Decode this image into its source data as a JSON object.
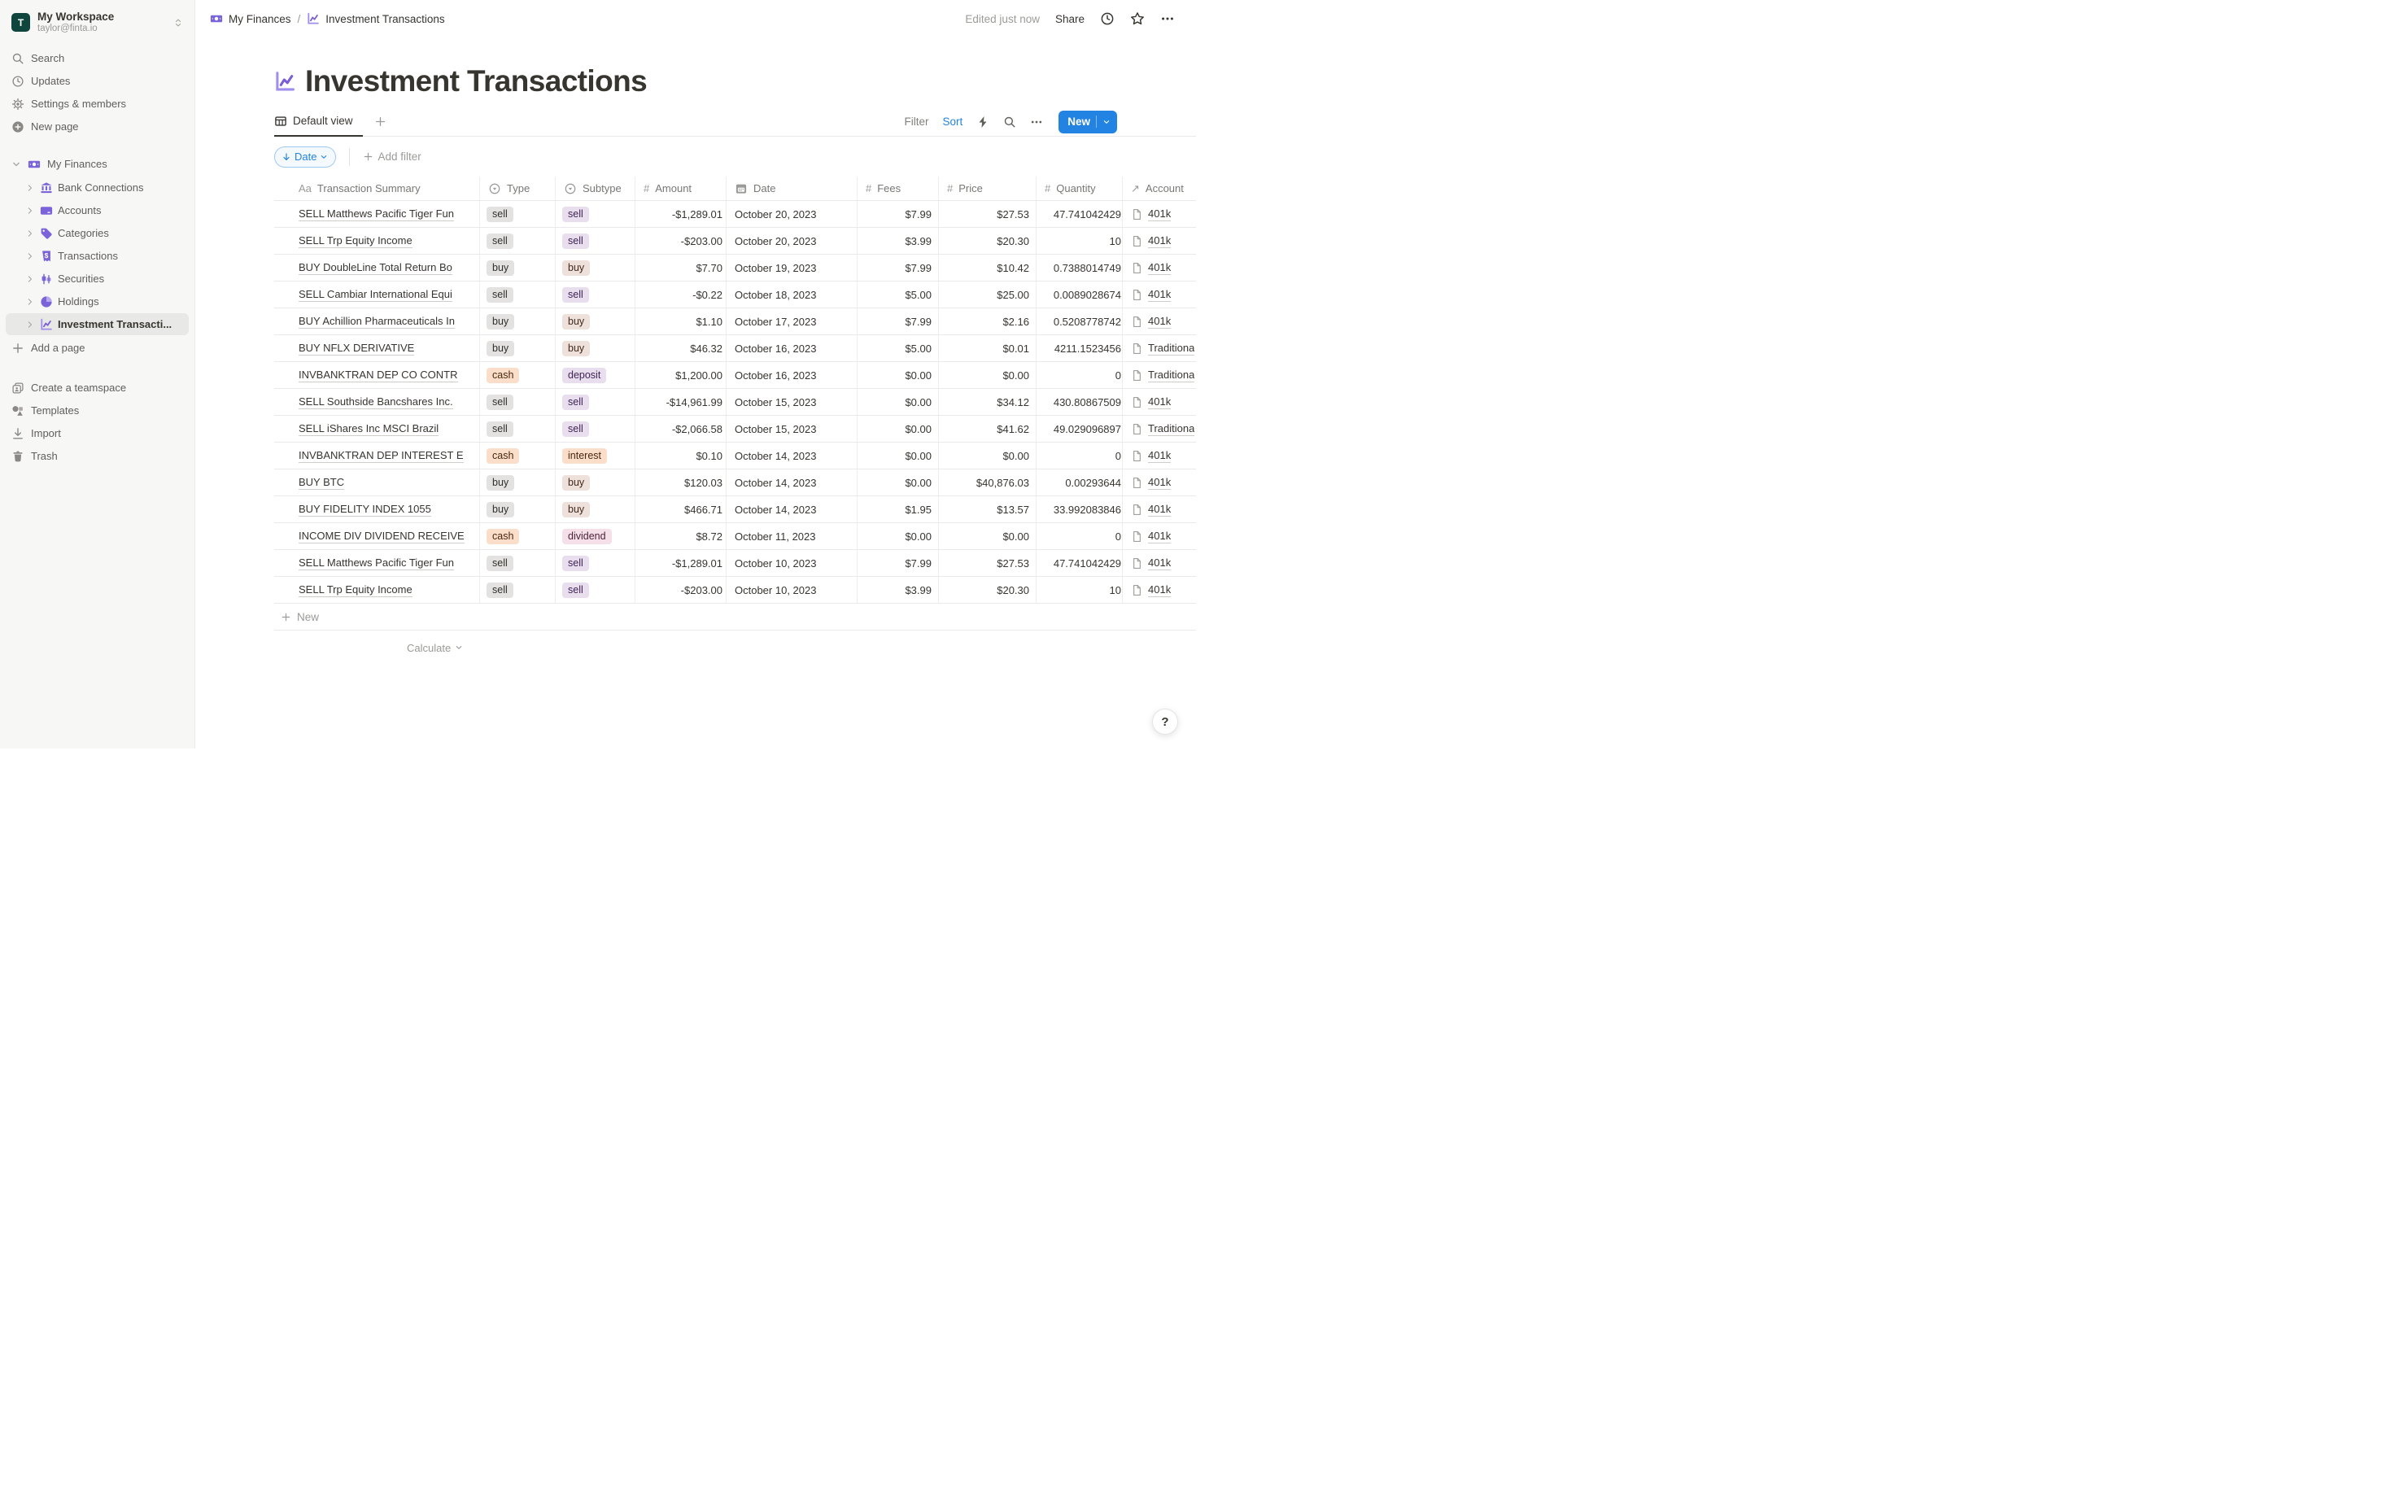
{
  "workspace": {
    "initial": "T",
    "name": "My Workspace",
    "email": "taylor@finta.io"
  },
  "sidebar": {
    "top_nav": [
      {
        "label": "Search",
        "icon": "search"
      },
      {
        "label": "Updates",
        "icon": "clock"
      },
      {
        "label": "Settings & members",
        "icon": "gear"
      },
      {
        "label": "New page",
        "icon": "plus-circle"
      }
    ],
    "section": {
      "label": "My Finances",
      "icon": "money",
      "items": [
        {
          "label": "Bank Connections",
          "icon": "bank"
        },
        {
          "label": "Accounts",
          "icon": "card"
        },
        {
          "label": "Categories",
          "icon": "tag"
        },
        {
          "label": "Transactions",
          "icon": "receipt"
        },
        {
          "label": "Securities",
          "icon": "candles"
        },
        {
          "label": "Holdings",
          "icon": "pie"
        },
        {
          "label": "Investment Transacti...",
          "icon": "line-chart",
          "selected": true
        }
      ]
    },
    "add_page": {
      "label": "Add a page",
      "icon": "plus"
    },
    "footer_nav": [
      {
        "label": "Create a teamspace",
        "icon": "teamspace"
      },
      {
        "label": "Templates",
        "icon": "templates"
      },
      {
        "label": "Import",
        "icon": "import"
      },
      {
        "label": "Trash",
        "icon": "trash"
      }
    ]
  },
  "topbar": {
    "breadcrumb": [
      {
        "label": "My Finances",
        "icon": "money"
      },
      {
        "label": "Investment Transactions",
        "icon": "line-chart"
      }
    ],
    "separator": "/",
    "edited": "Edited just now",
    "share": "Share"
  },
  "page": {
    "title": "Investment Transactions",
    "icon": "line-chart"
  },
  "toolbar": {
    "active_view": "Default view",
    "filter": "Filter",
    "sort": "Sort",
    "new": "New"
  },
  "filters": {
    "sort_field": "Date",
    "add_filter": "Add filter"
  },
  "table": {
    "columns": [
      {
        "key": "summary",
        "label": "Transaction Summary",
        "icon": "aa"
      },
      {
        "key": "type",
        "label": "Type",
        "icon": "select"
      },
      {
        "key": "subtype",
        "label": "Subtype",
        "icon": "select"
      },
      {
        "key": "amount",
        "label": "Amount",
        "icon": "hash"
      },
      {
        "key": "date",
        "label": "Date",
        "icon": "calendar"
      },
      {
        "key": "fees",
        "label": "Fees",
        "icon": "hash"
      },
      {
        "key": "price",
        "label": "Price",
        "icon": "hash"
      },
      {
        "key": "quantity",
        "label": "Quantity",
        "icon": "hash"
      },
      {
        "key": "account",
        "label": "Account",
        "icon": "arrow-up-right"
      }
    ],
    "rows": [
      {
        "summary": "SELL Matthews Pacific Tiger Fun",
        "type": "sell",
        "type_color": "gray",
        "subtype": "sell",
        "subtype_color": "purple",
        "amount": "-$1,289.01",
        "date": "October 20, 2023",
        "fees": "$7.99",
        "price": "$27.53",
        "quantity": "47.741042429",
        "account": "401k"
      },
      {
        "summary": "SELL Trp Equity Income",
        "type": "sell",
        "type_color": "gray",
        "subtype": "sell",
        "subtype_color": "purple",
        "amount": "-$203.00",
        "date": "October 20, 2023",
        "fees": "$3.99",
        "price": "$20.30",
        "quantity": "10",
        "account": "401k"
      },
      {
        "summary": "BUY DoubleLine Total Return Bo",
        "type": "buy",
        "type_color": "gray",
        "subtype": "buy",
        "subtype_color": "brown",
        "amount": "$7.70",
        "date": "October 19, 2023",
        "fees": "$7.99",
        "price": "$10.42",
        "quantity": "0.7388014749",
        "account": "401k"
      },
      {
        "summary": "SELL Cambiar International Equi",
        "type": "sell",
        "type_color": "gray",
        "subtype": "sell",
        "subtype_color": "purple",
        "amount": "-$0.22",
        "date": "October 18, 2023",
        "fees": "$5.00",
        "price": "$25.00",
        "quantity": "0.0089028674",
        "account": "401k"
      },
      {
        "summary": "BUY Achillion Pharmaceuticals In",
        "type": "buy",
        "type_color": "gray",
        "subtype": "buy",
        "subtype_color": "brown",
        "amount": "$1.10",
        "date": "October 17, 2023",
        "fees": "$7.99",
        "price": "$2.16",
        "quantity": "0.5208778742",
        "account": "401k"
      },
      {
        "summary": "BUY NFLX DERIVATIVE",
        "type": "buy",
        "type_color": "gray",
        "subtype": "buy",
        "subtype_color": "brown",
        "amount": "$46.32",
        "date": "October 16, 2023",
        "fees": "$5.00",
        "price": "$0.01",
        "quantity": "4211.1523456",
        "account": "Traditiona"
      },
      {
        "summary": "INVBANKTRAN DEP CO CONTR",
        "type": "cash",
        "type_color": "orange",
        "subtype": "deposit",
        "subtype_color": "purple",
        "amount": "$1,200.00",
        "date": "October 16, 2023",
        "fees": "$0.00",
        "price": "$0.00",
        "quantity": "0",
        "account": "Traditiona"
      },
      {
        "summary": "SELL Southside Bancshares Inc.",
        "type": "sell",
        "type_color": "gray",
        "subtype": "sell",
        "subtype_color": "purple",
        "amount": "-$14,961.99",
        "date": "October 15, 2023",
        "fees": "$0.00",
        "price": "$34.12",
        "quantity": "430.80867509",
        "account": "401k"
      },
      {
        "summary": "SELL iShares Inc MSCI Brazil",
        "type": "sell",
        "type_color": "gray",
        "subtype": "sell",
        "subtype_color": "purple",
        "amount": "-$2,066.58",
        "date": "October 15, 2023",
        "fees": "$0.00",
        "price": "$41.62",
        "quantity": "49.029096897",
        "account": "Traditiona"
      },
      {
        "summary": "INVBANKTRAN DEP INTEREST E",
        "type": "cash",
        "type_color": "orange",
        "subtype": "interest",
        "subtype_color": "orange",
        "amount": "$0.10",
        "date": "October 14, 2023",
        "fees": "$0.00",
        "price": "$0.00",
        "quantity": "0",
        "account": "401k"
      },
      {
        "summary": "BUY BTC",
        "type": "buy",
        "type_color": "gray",
        "subtype": "buy",
        "subtype_color": "brown",
        "amount": "$120.03",
        "date": "October 14, 2023",
        "fees": "$0.00",
        "price": "$40,876.03",
        "quantity": "0.00293644",
        "account": "401k"
      },
      {
        "summary": "BUY FIDELITY INDEX 1055",
        "type": "buy",
        "type_color": "gray",
        "subtype": "buy",
        "subtype_color": "brown",
        "amount": "$466.71",
        "date": "October 14, 2023",
        "fees": "$1.95",
        "price": "$13.57",
        "quantity": "33.992083846",
        "account": "401k"
      },
      {
        "summary": "INCOME DIV DIVIDEND RECEIVE",
        "type": "cash",
        "type_color": "orange",
        "subtype": "dividend",
        "subtype_color": "pink",
        "amount": "$8.72",
        "date": "October 11, 2023",
        "fees": "$0.00",
        "price": "$0.00",
        "quantity": "0",
        "account": "401k"
      },
      {
        "summary": "SELL Matthews Pacific Tiger Fun",
        "type": "sell",
        "type_color": "gray",
        "subtype": "sell",
        "subtype_color": "purple",
        "amount": "-$1,289.01",
        "date": "October 10, 2023",
        "fees": "$7.99",
        "price": "$27.53",
        "quantity": "47.741042429",
        "account": "401k"
      },
      {
        "summary": "SELL Trp Equity Income",
        "type": "sell",
        "type_color": "gray",
        "subtype": "sell",
        "subtype_color": "purple",
        "amount": "-$203.00",
        "date": "October 10, 2023",
        "fees": "$3.99",
        "price": "$20.30",
        "quantity": "10",
        "account": "401k"
      }
    ],
    "new_row": "New",
    "calculate": "Calculate"
  },
  "help": "?",
  "colors": {
    "accent_blue": "#2383e2",
    "sidebar_purple": "#7b64d9",
    "avatar_teal": "#10453d"
  }
}
